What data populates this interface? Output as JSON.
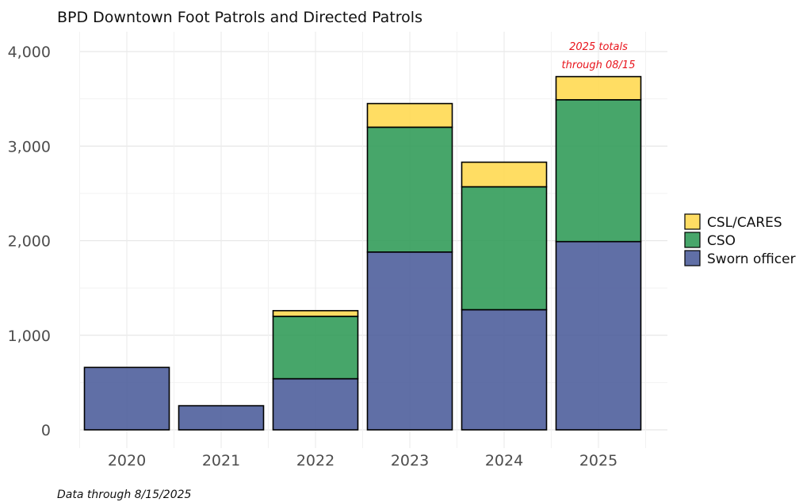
{
  "chart_data": {
    "type": "bar",
    "stacked": true,
    "title": "BPD Downtown Foot Patrols and Directed Patrols",
    "xlabel": "",
    "ylabel": "",
    "categories": [
      "2020",
      "2021",
      "2022",
      "2023",
      "2024",
      "2025"
    ],
    "series": [
      {
        "name": "Sworn officer",
        "color": "#4a5b9a",
        "values": [
          660,
          255,
          540,
          1880,
          1270,
          1990
        ]
      },
      {
        "name": "CSO",
        "color": "#2e9a55",
        "values": [
          0,
          0,
          660,
          1320,
          1300,
          1500
        ]
      },
      {
        "name": "CSL/CARES",
        "color": "#ffd84d",
        "values": [
          0,
          0,
          60,
          250,
          260,
          245
        ]
      }
    ],
    "ylim": [
      0,
      4000
    ],
    "yticks": [
      0,
      1000,
      2000,
      3000,
      4000
    ],
    "ytick_labels": [
      "0",
      "1,000",
      "2,000",
      "3,000",
      "4,000"
    ],
    "grid": true,
    "legend_position": "right",
    "annotation": {
      "lines": [
        "2025 totals",
        "through 08/15"
      ],
      "color": "#e8141c",
      "category": "2025"
    },
    "caption": "Data through 8/15/2025"
  }
}
